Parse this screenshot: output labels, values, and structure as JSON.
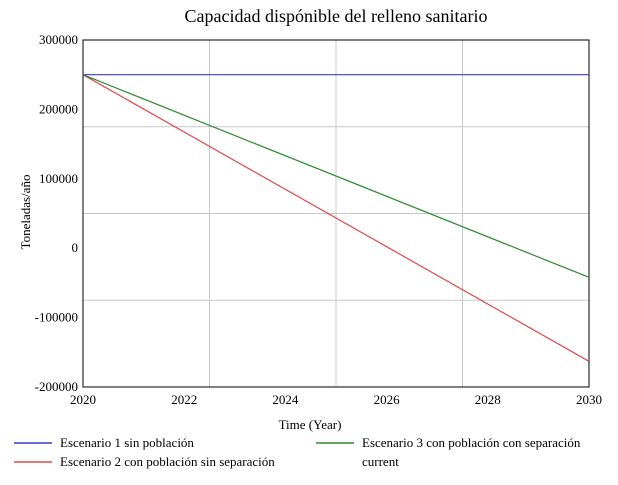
{
  "chart_data": {
    "type": "line",
    "title": "Capacidad dispónible del relleno sanitario",
    "xlabel": "Time (Year)",
    "ylabel": "Toneladas/año",
    "xlim": [
      2020,
      2030
    ],
    "ylim": [
      -200000,
      300000
    ],
    "x_ticks": [
      2020,
      2022,
      2024,
      2026,
      2028,
      2030
    ],
    "y_ticks": [
      300000,
      200000,
      100000,
      0,
      -100000,
      -200000
    ],
    "x_tick_labels": [
      "2020",
      "2022",
      "2024",
      "2026",
      "2028",
      "2030"
    ],
    "y_tick_labels": [
      "300000",
      "200000",
      "100000",
      "0",
      "-100000",
      "-200000"
    ],
    "x_grid": [
      2020,
      2022.5,
      2025,
      2027.5,
      2030
    ],
    "y_grid": [
      300000,
      175000,
      50000,
      -75000,
      -200000
    ],
    "grid": true,
    "legend_position": "bottom",
    "series": [
      {
        "name": "Escenario 1 sin población",
        "color": "#3a3ad6",
        "x": [
          2020,
          2030
        ],
        "values": [
          250000,
          250000
        ]
      },
      {
        "name": "Escenario 2 con población sin separación",
        "color": "#e04848",
        "x": [
          2020,
          2030
        ],
        "values": [
          250000,
          -163000
        ]
      },
      {
        "name": "Escenario 3 con población con separación",
        "name_continued": "current",
        "color": "#2f8a2f",
        "x": [
          2020,
          2030
        ],
        "values": [
          250000,
          -42000
        ]
      }
    ]
  }
}
